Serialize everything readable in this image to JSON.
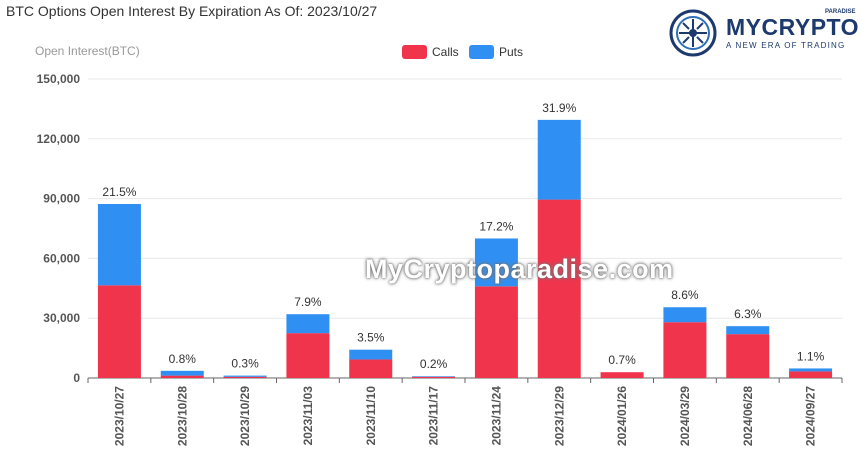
{
  "title": "BTC Options Open Interest By Expiration As Of: 2023/10/27",
  "logo": {
    "brand": "MYCRYPTO",
    "sub": "PARADISE",
    "tagline": "A NEW ERA OF TRADING"
  },
  "watermark": "MyCryptoparadise.com",
  "colors": {
    "calls": "#f0344c",
    "puts": "#2f8ff2"
  },
  "chart_data": {
    "type": "bar",
    "stacked": true,
    "ylabel": "Open Interest(BTC)",
    "xlabel": "",
    "ylim": [
      0,
      150000
    ],
    "yticks": [
      "0",
      "30,000",
      "60,000",
      "90,000",
      "120,000",
      "150,000"
    ],
    "ytick_values": [
      0,
      30000,
      60000,
      90000,
      120000,
      150000
    ],
    "legend_position": "top-center",
    "categories": [
      "2023/10/27",
      "2023/10/28",
      "2023/10/29",
      "2023/11/03",
      "2023/11/10",
      "2023/11/17",
      "2023/11/24",
      "2023/12/29",
      "2024/01/26",
      "2024/03/29",
      "2024/06/28",
      "2024/09/27"
    ],
    "series": [
      {
        "name": "Calls",
        "values": [
          46500,
          1200,
          600,
          22500,
          9300,
          600,
          46000,
          89500,
          2900,
          28000,
          22000,
          3300
        ]
      },
      {
        "name": "Puts",
        "values": [
          40800,
          2400,
          600,
          9500,
          4900,
          300,
          24000,
          40000,
          0,
          7500,
          4000,
          1500
        ]
      }
    ],
    "labels": [
      "21.5%",
      "0.8%",
      "0.3%",
      "7.9%",
      "3.5%",
      "0.2%",
      "17.2%",
      "31.9%",
      "0.7%",
      "8.6%",
      "6.3%",
      "1.1%"
    ]
  }
}
